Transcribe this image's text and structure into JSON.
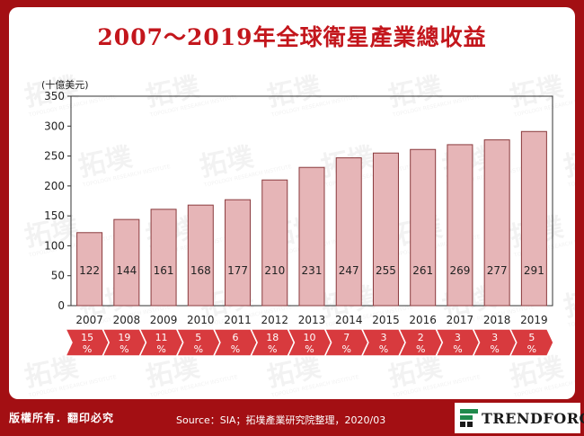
{
  "title": "2007～2019年全球衛星產業總收益",
  "chart_data": {
    "type": "bar",
    "title": "2007～2019年全球衛星產業總收益",
    "ylabel": "(十億美元)",
    "xlabel": "",
    "ylim": [
      0,
      350
    ],
    "yticks": [
      0,
      50,
      100,
      150,
      200,
      250,
      300,
      350
    ],
    "categories": [
      "2007",
      "2008",
      "2009",
      "2010",
      "2011",
      "2012",
      "2013",
      "2014",
      "2015",
      "2016",
      "2017",
      "2018",
      "2019"
    ],
    "values": [
      122,
      144,
      161,
      168,
      177,
      210,
      231,
      247,
      255,
      261,
      269,
      277,
      291
    ],
    "growth_labels": [
      [
        "15",
        "%"
      ],
      [
        "19",
        "%"
      ],
      [
        "11",
        "%"
      ],
      [
        "5",
        "%"
      ],
      [
        "6",
        "%"
      ],
      [
        "18",
        "%"
      ],
      [
        "10",
        "%"
      ],
      [
        "7",
        "%"
      ],
      [
        "3",
        "%"
      ],
      [
        "2",
        "%"
      ],
      [
        "3",
        "%"
      ],
      [
        "3",
        "%"
      ],
      [
        "5",
        "%"
      ]
    ],
    "grid": false,
    "bar_color": "#e6b5b7",
    "bar_border": "#8a3a3d",
    "arrow_color": "#d83a3e"
  },
  "watermark": {
    "text": "拓墣",
    "sub": "TOPOLOGY RESEARCH INSTITUTE"
  },
  "footer": {
    "copyright": "版權所有．翻印必究",
    "source": "Source：SIA；拓墣產業研究院整理，2020/03",
    "logo_text": "TRENDFORCE"
  },
  "colors": {
    "frame": "#a30f13",
    "title": "#c3161c"
  }
}
